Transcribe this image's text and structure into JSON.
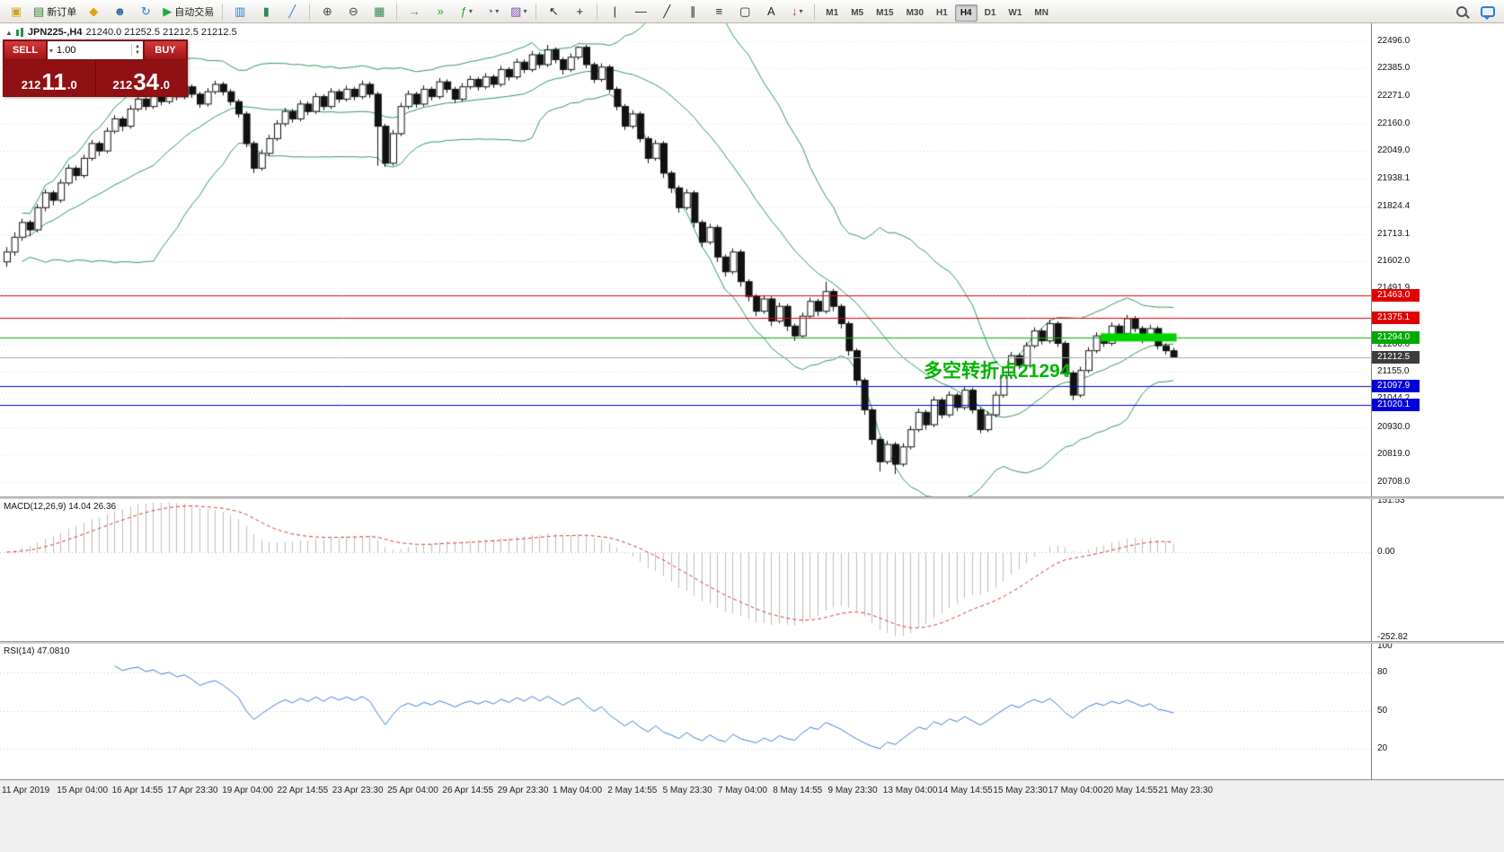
{
  "toolbar": {
    "items": [
      {
        "type": "icon",
        "name": "app-icon",
        "glyph": "▣",
        "color": "#c8a415"
      },
      {
        "type": "button",
        "name": "new-order-button",
        "glyph": "▤",
        "color": "#2e7d32",
        "label": "新订单"
      },
      {
        "type": "icon",
        "name": "market-watch-icon",
        "glyph": "◆",
        "color": "#e0a010"
      },
      {
        "type": "icon",
        "name": "profiles-icon",
        "glyph": "☻",
        "color": "#3466a5"
      },
      {
        "type": "icon",
        "name": "navigator-icon",
        "glyph": "↻",
        "color": "#2a7fd4"
      },
      {
        "type": "button",
        "name": "auto-trading-button",
        "glyph": "▶",
        "color": "#1faa35",
        "label": "自动交易"
      },
      {
        "type": "sep"
      },
      {
        "type": "icon",
        "name": "bar-chart-icon",
        "glyph": "▥",
        "color": "#2a7fd4"
      },
      {
        "type": "icon",
        "name": "candlestick-chart-icon",
        "glyph": "▮",
        "color": "#2e8b57"
      },
      {
        "type": "icon",
        "name": "line-chart-icon",
        "glyph": "╱",
        "color": "#2a7fd4"
      },
      {
        "type": "sep"
      },
      {
        "type": "icon",
        "name": "zoom-in-icon",
        "glyph": "⊕",
        "color": "#444444"
      },
      {
        "type": "icon",
        "name": "zoom-out-icon",
        "glyph": "⊖",
        "color": "#444444"
      },
      {
        "type": "icon",
        "name": "tile-windows-icon",
        "glyph": "▦",
        "color": "#2e8b57"
      },
      {
        "type": "sep"
      },
      {
        "type": "icon",
        "name": "auto-scroll-icon",
        "glyph": "→",
        "color": "#1faa35"
      },
      {
        "type": "icon",
        "name": "chart-shift-icon",
        "glyph": "»",
        "color": "#1faa35"
      },
      {
        "type": "icon",
        "name": "indicators-icon",
        "glyph": "ƒ",
        "color": "#1faa35",
        "caret": true
      },
      {
        "type": "icon",
        "name": "periods-clock-icon",
        "glyph": "◔",
        "color": "#2a7fd4",
        "caret": true
      },
      {
        "type": "icon",
        "name": "templates-icon",
        "glyph": "▨",
        "color": "#7a4fb0",
        "caret": true
      },
      {
        "type": "sep"
      },
      {
        "type": "icon",
        "name": "cursor-icon",
        "glyph": "↖",
        "color": "#222222"
      },
      {
        "type": "icon",
        "name": "crosshair-icon",
        "glyph": "+",
        "color": "#222222"
      },
      {
        "type": "sep"
      },
      {
        "type": "icon",
        "name": "vertical-line-icon",
        "glyph": "|",
        "color": "#222222"
      },
      {
        "type": "icon",
        "name": "horizontal-line-icon",
        "glyph": "—",
        "color": "#222222"
      },
      {
        "type": "icon",
        "name": "trendline-icon",
        "glyph": "╱",
        "color": "#222222"
      },
      {
        "type": "icon",
        "name": "channel-icon",
        "glyph": "∥",
        "color": "#222222"
      },
      {
        "type": "icon",
        "name": "fibonacci-icon",
        "glyph": "≡",
        "color": "#222222"
      },
      {
        "type": "icon",
        "name": "shapes-icon",
        "glyph": "▢",
        "color": "#222222"
      },
      {
        "type": "icon",
        "name": "text-icon",
        "glyph": "A",
        "color": "#222222"
      },
      {
        "type": "icon",
        "name": "arrows-icon",
        "glyph": "↓",
        "color": "#c03030",
        "caret": true
      },
      {
        "type": "sep"
      },
      {
        "type": "tfgroup"
      },
      {
        "type": "spring"
      },
      {
        "type": "icon",
        "name": "search-icon",
        "css": "mag"
      },
      {
        "type": "icon",
        "name": "chat-icon",
        "css": "bubble"
      }
    ],
    "timeframes": [
      "M1",
      "M5",
      "M15",
      "M30",
      "H1",
      "H4",
      "D1",
      "W1",
      "MN"
    ],
    "active_timeframe": "H4"
  },
  "chart": {
    "toggle_icon": "▲",
    "symbol": "JPN225-,H4",
    "ohlc_text": "21240.0 21252.5 21212.5 21212.5"
  },
  "trade_panel": {
    "sell_label": "SELL",
    "buy_label": "BUY",
    "volume": "1.00",
    "volume_caret": "▾",
    "spin_up": "▲",
    "spin_down": "▼",
    "sell_price": {
      "pre": "212",
      "big": "11",
      "post": ".0"
    },
    "buy_price": {
      "pre": "212",
      "big": "34",
      "post": ".0"
    }
  },
  "levels": [
    {
      "price": 21463.0,
      "label": "21463.0",
      "color": "#e00000",
      "badge_color": "#e00000"
    },
    {
      "price": 21375.1,
      "label": "21375.1",
      "color": "#e00000",
      "badge_color": "#e00000"
    },
    {
      "price": 21294.0,
      "label": "21294.0",
      "color": "#00b000",
      "badge_color": "#00a800"
    },
    {
      "price": 21212.5,
      "label": "21212.5",
      "color": "#a8a8a8",
      "badge_color": "#3c3c3c"
    },
    {
      "price": 21097.9,
      "label": "21097.9",
      "color": "#0000e0",
      "badge_color": "#0000d8"
    },
    {
      "price": 21020.1,
      "label": "21020.1",
      "color": "#0000e0",
      "badge_color": "#0000d8"
    }
  ],
  "annotation": {
    "text": "多空转折点21294",
    "color": "#00b400"
  },
  "highlight": {
    "from_candle": 142,
    "to_candle": 151,
    "price": 21294,
    "color": "#00d300",
    "thickness": 9
  },
  "macd": {
    "label": "MACD(12,26,9)",
    "values_text": "14.04 26.36",
    "params": [
      12,
      26,
      9
    ],
    "ylim": [
      -252.82,
      151.53
    ],
    "y_ticks": [
      {
        "label": "151.53",
        "value": 151.53
      },
      {
        "label": "0.00",
        "value": 0
      },
      {
        "label": "-252.82",
        "value": -252.82
      }
    ],
    "histogram_color": "#bdbdbd",
    "signal_color": "#e03232"
  },
  "rsi": {
    "label": "RSI(14)",
    "value_text": "47.0810",
    "period": 14,
    "y_ticks": [
      {
        "label": "100",
        "value": 100
      },
      {
        "label": "80",
        "value": 80
      },
      {
        "label": "50",
        "value": 50
      },
      {
        "label": "20",
        "value": 20
      }
    ],
    "levels": [
      80,
      50,
      20
    ],
    "line_color": "#3b7dd8"
  },
  "chart_data": {
    "type": "candlestick",
    "title": "JPN225-,H4",
    "ylim": [
      20660,
      22560
    ],
    "y_ticks": [
      22496.0,
      22385.0,
      22271.0,
      22160.0,
      22049.0,
      21938.1,
      21824.4,
      21713.1,
      21602.0,
      21491.9,
      21380.7,
      21266.0,
      21155.0,
      21044.2,
      20930.0,
      20819.0,
      20708.0
    ],
    "bollinger": {
      "period": 20,
      "deviation": 2,
      "color": "#2e9958"
    },
    "candle_colors": {
      "up": "#ffffff",
      "down": "#111111",
      "outline": "#111111"
    },
    "x_labels": [
      "11 Apr 2019",
      "15 Apr 04:00",
      "16 Apr 14:55",
      "17 Apr 23:30",
      "19 Apr 04:00",
      "22 Apr 14:55",
      "23 Apr 23:30",
      "25 Apr 04:00",
      "26 Apr 14:55",
      "29 Apr 23:30",
      "1 May 04:00",
      "2 May 14:55",
      "5 May 23:30",
      "7 May 04:00",
      "8 May 14:55",
      "9 May 23:30",
      "13 May 04:00",
      "14 May 14:55",
      "15 May 23:30",
      "17 May 04:00",
      "20 May 14:55",
      "21 May 23:30"
    ],
    "ohlc": [
      [
        21600,
        21660,
        21580,
        21640
      ],
      [
        21640,
        21720,
        21625,
        21700
      ],
      [
        21700,
        21775,
        21685,
        21760
      ],
      [
        21760,
        21770,
        21705,
        21730
      ],
      [
        21730,
        21835,
        21720,
        21820
      ],
      [
        21820,
        21895,
        21805,
        21880
      ],
      [
        21880,
        21890,
        21830,
        21850
      ],
      [
        21850,
        21935,
        21840,
        21920
      ],
      [
        21920,
        21995,
        21910,
        21980
      ],
      [
        21980,
        21990,
        21930,
        21950
      ],
      [
        21950,
        22035,
        21940,
        22020
      ],
      [
        22020,
        22095,
        22010,
        22080
      ],
      [
        22080,
        22090,
        22030,
        22050
      ],
      [
        22050,
        22145,
        22040,
        22130
      ],
      [
        22130,
        22195,
        22120,
        22180
      ],
      [
        22180,
        22190,
        22130,
        22150
      ],
      [
        22150,
        22235,
        22140,
        22220
      ],
      [
        22220,
        22275,
        22210,
        22260
      ],
      [
        22260,
        22270,
        22215,
        22230
      ],
      [
        22230,
        22295,
        22220,
        22280
      ],
      [
        22280,
        22290,
        22235,
        22250
      ],
      [
        22250,
        22315,
        22240,
        22300
      ],
      [
        22300,
        22310,
        22255,
        22270
      ],
      [
        22270,
        22325,
        22260,
        22310
      ],
      [
        22310,
        22320,
        22265,
        22280
      ],
      [
        22280,
        22290,
        22225,
        22240
      ],
      [
        22240,
        22305,
        22230,
        22290
      ],
      [
        22290,
        22335,
        22280,
        22320
      ],
      [
        22320,
        22330,
        22275,
        22290
      ],
      [
        22290,
        22300,
        22235,
        22250
      ],
      [
        22250,
        22260,
        22185,
        22200
      ],
      [
        22200,
        22210,
        22065,
        22080
      ],
      [
        22080,
        22090,
        21960,
        21980
      ],
      [
        21980,
        22055,
        21970,
        22040
      ],
      [
        22040,
        22115,
        22030,
        22100
      ],
      [
        22100,
        22175,
        22090,
        22160
      ],
      [
        22160,
        22225,
        22150,
        22210
      ],
      [
        22210,
        22220,
        22165,
        22180
      ],
      [
        22180,
        22255,
        22170,
        22240
      ],
      [
        22240,
        22250,
        22195,
        22210
      ],
      [
        22210,
        22285,
        22200,
        22270
      ],
      [
        22270,
        22280,
        22215,
        22230
      ],
      [
        22230,
        22305,
        22220,
        22290
      ],
      [
        22290,
        22300,
        22245,
        22260
      ],
      [
        22260,
        22315,
        22250,
        22300
      ],
      [
        22300,
        22310,
        22255,
        22270
      ],
      [
        22270,
        22335,
        22260,
        22320
      ],
      [
        22320,
        22330,
        22265,
        22280
      ],
      [
        22280,
        22290,
        21990,
        22150
      ],
      [
        22150,
        22160,
        21985,
        22000
      ],
      [
        22000,
        22135,
        21990,
        22120
      ],
      [
        22120,
        22245,
        22110,
        22230
      ],
      [
        22230,
        22295,
        22220,
        22280
      ],
      [
        22280,
        22290,
        22225,
        22240
      ],
      [
        22240,
        22315,
        22230,
        22300
      ],
      [
        22300,
        22310,
        22255,
        22270
      ],
      [
        22270,
        22345,
        22260,
        22330
      ],
      [
        22330,
        22340,
        22285,
        22300
      ],
      [
        22300,
        22310,
        22245,
        22260
      ],
      [
        22260,
        22325,
        22250,
        22310
      ],
      [
        22310,
        22355,
        22300,
        22340
      ],
      [
        22340,
        22350,
        22295,
        22310
      ],
      [
        22310,
        22365,
        22300,
        22350
      ],
      [
        22350,
        22360,
        22305,
        22320
      ],
      [
        22320,
        22395,
        22310,
        22380
      ],
      [
        22380,
        22390,
        22335,
        22350
      ],
      [
        22350,
        22425,
        22340,
        22410
      ],
      [
        22410,
        22420,
        22365,
        22380
      ],
      [
        22380,
        22455,
        22370,
        22440
      ],
      [
        22440,
        22450,
        22385,
        22400
      ],
      [
        22400,
        22480,
        22390,
        22460
      ],
      [
        22460,
        22470,
        22405,
        22420
      ],
      [
        22420,
        22430,
        22360,
        22380
      ],
      [
        22380,
        22445,
        22370,
        22430
      ],
      [
        22430,
        22475,
        22420,
        22470
      ],
      [
        22470,
        22480,
        22385,
        22400
      ],
      [
        22400,
        22410,
        22325,
        22340
      ],
      [
        22340,
        22405,
        22330,
        22390
      ],
      [
        22390,
        22400,
        22285,
        22300
      ],
      [
        22300,
        22310,
        22215,
        22230
      ],
      [
        22230,
        22240,
        22135,
        22150
      ],
      [
        22150,
        22215,
        22140,
        22200
      ],
      [
        22200,
        22210,
        22085,
        22100
      ],
      [
        22100,
        22110,
        22000,
        22020
      ],
      [
        22020,
        22095,
        22010,
        22080
      ],
      [
        22080,
        22090,
        21940,
        21960
      ],
      [
        21960,
        21970,
        21880,
        21900
      ],
      [
        21900,
        21910,
        21800,
        21820
      ],
      [
        21820,
        21895,
        21810,
        21880
      ],
      [
        21880,
        21890,
        21740,
        21760
      ],
      [
        21760,
        21770,
        21660,
        21680
      ],
      [
        21680,
        21755,
        21670,
        21740
      ],
      [
        21740,
        21750,
        21600,
        21620
      ],
      [
        21620,
        21630,
        21540,
        21560
      ],
      [
        21560,
        21655,
        21550,
        21640
      ],
      [
        21640,
        21650,
        21500,
        21520
      ],
      [
        21520,
        21530,
        21440,
        21460
      ],
      [
        21460,
        21470,
        21380,
        21400
      ],
      [
        21400,
        21465,
        21390,
        21450
      ],
      [
        21450,
        21460,
        21340,
        21360
      ],
      [
        21360,
        21435,
        21350,
        21420
      ],
      [
        21420,
        21430,
        21320,
        21340
      ],
      [
        21340,
        21350,
        21280,
        21300
      ],
      [
        21300,
        21395,
        21290,
        21380
      ],
      [
        21380,
        21455,
        21370,
        21440
      ],
      [
        21440,
        21450,
        21380,
        21400
      ],
      [
        21400,
        21520,
        21390,
        21480
      ],
      [
        21480,
        21490,
        21400,
        21420
      ],
      [
        21420,
        21430,
        21330,
        21350
      ],
      [
        21350,
        21360,
        21220,
        21240
      ],
      [
        21240,
        21250,
        21100,
        21120
      ],
      [
        21120,
        21130,
        20980,
        21000
      ],
      [
        21000,
        21010,
        20860,
        20880
      ],
      [
        20880,
        20890,
        20750,
        20790
      ],
      [
        20790,
        20875,
        20780,
        20860
      ],
      [
        20860,
        20870,
        20740,
        20780
      ],
      [
        20780,
        20865,
        20770,
        20850
      ],
      [
        20850,
        20935,
        20840,
        20920
      ],
      [
        20920,
        21005,
        20910,
        20990
      ],
      [
        20990,
        21000,
        20920,
        20940
      ],
      [
        20940,
        21055,
        20930,
        21040
      ],
      [
        21040,
        21050,
        20965,
        20980
      ],
      [
        20980,
        21075,
        20970,
        21060
      ],
      [
        21060,
        21070,
        20995,
        21010
      ],
      [
        21010,
        21095,
        21000,
        21080
      ],
      [
        21080,
        21090,
        20985,
        21000
      ],
      [
        21000,
        21010,
        20905,
        20920
      ],
      [
        20920,
        20995,
        20910,
        20980
      ],
      [
        20980,
        21075,
        20970,
        21060
      ],
      [
        21060,
        21155,
        21050,
        21140
      ],
      [
        21140,
        21235,
        21130,
        21220
      ],
      [
        21220,
        21230,
        21165,
        21180
      ],
      [
        21180,
        21275,
        21170,
        21260
      ],
      [
        21260,
        21335,
        21250,
        21320
      ],
      [
        21320,
        21330,
        21265,
        21280
      ],
      [
        21280,
        21365,
        21270,
        21350
      ],
      [
        21350,
        21360,
        21255,
        21270
      ],
      [
        21270,
        21280,
        21135,
        21150
      ],
      [
        21150,
        21160,
        21040,
        21060
      ],
      [
        21060,
        21175,
        21050,
        21160
      ],
      [
        21160,
        21255,
        21150,
        21240
      ],
      [
        21240,
        21315,
        21230,
        21300
      ],
      [
        21300,
        21310,
        21255,
        21270
      ],
      [
        21270,
        21355,
        21260,
        21340
      ],
      [
        21340,
        21350,
        21295,
        21310
      ],
      [
        21310,
        21385,
        21300,
        21370
      ],
      [
        21370,
        21380,
        21315,
        21330
      ],
      [
        21330,
        21340,
        21270,
        21290
      ],
      [
        21290,
        21345,
        21280,
        21330
      ],
      [
        21330,
        21340,
        21245,
        21260
      ],
      [
        21260,
        21270,
        21225,
        21240
      ],
      [
        21240,
        21252.5,
        21212.5,
        21212.5
      ]
    ]
  },
  "time_axis": {
    "labels_ref": "chart_data.x_labels"
  }
}
